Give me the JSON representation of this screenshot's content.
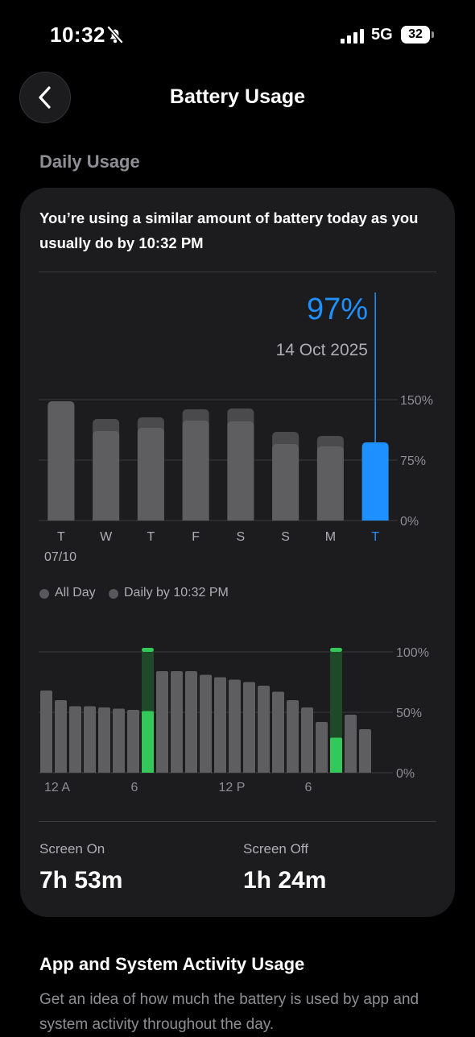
{
  "status_bar": {
    "time": "10:32",
    "network": "5G",
    "battery": "32"
  },
  "header": {
    "title": "Battery Usage"
  },
  "daily": {
    "section_title": "Daily Usage",
    "summary": "You’re using a similar amount of battery today as you usually do by 10:32 PM",
    "selected_value": "97%",
    "selected_date": "14 Oct 2025",
    "legend_all_day": "All Day",
    "legend_daily_by": "Daily by 10:32 PM"
  },
  "stats": {
    "screen_on_label": "Screen On",
    "screen_on_value": "7h 53m",
    "screen_off_label": "Screen Off",
    "screen_off_value": "1h 24m"
  },
  "activity": {
    "title": "App and System Activity Usage",
    "description": "Get an idea of how much the battery is used by app and system activity throughout the day."
  },
  "colors": {
    "accent": "#1e90ff",
    "charging": "#34c759",
    "bar": "#4a4a4c",
    "bar_light": "#5e5e60"
  },
  "chart_data": [
    {
      "type": "bar",
      "categories": [
        "T",
        "W",
        "T",
        "F",
        "S",
        "S",
        "M",
        "T"
      ],
      "first_category_sublabel": "07/10",
      "series": [
        {
          "name": "All Day",
          "values": [
            148,
            126,
            128,
            138,
            139,
            110,
            105,
            null
          ]
        },
        {
          "name": "Daily by 10:32 PM",
          "values": [
            148,
            111,
            115,
            124,
            123,
            95,
            92,
            97
          ]
        }
      ],
      "highlight_index": 7,
      "y_ticks": [
        "150%",
        "75%",
        "0%"
      ],
      "ylim": [
        0,
        150
      ]
    },
    {
      "type": "bar",
      "x_ticks": [
        "12 A",
        "6",
        "12 P",
        "6"
      ],
      "values": [
        68,
        60,
        55,
        55,
        54,
        53,
        52,
        51,
        84,
        84,
        84,
        81,
        79,
        77,
        75,
        72,
        67,
        60,
        54,
        42,
        29,
        48,
        36
      ],
      "charging_hours": [
        7,
        20
      ],
      "y_ticks": [
        "100%",
        "50%",
        "0%"
      ],
      "ylim": [
        0,
        100
      ]
    }
  ]
}
